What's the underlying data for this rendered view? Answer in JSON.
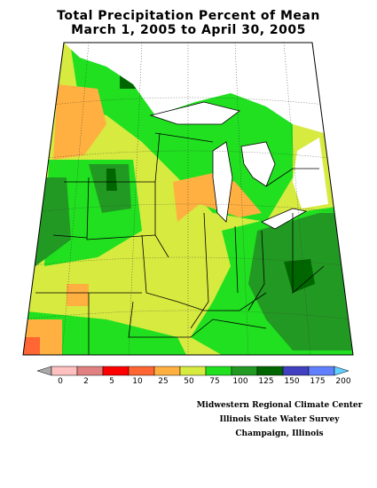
{
  "title": {
    "line1": "Total Precipitation Percent of Mean",
    "line2": "March 1, 2005 to April 30, 2005"
  },
  "legend": {
    "items": [
      {
        "label": "0",
        "color": "#ffc0c0"
      },
      {
        "label": "2",
        "color": "#e08080"
      },
      {
        "label": "5",
        "color": "#ff0000"
      },
      {
        "label": "10",
        "color": "#ff6633"
      },
      {
        "label": "25",
        "color": "#ffb040"
      },
      {
        "label": "50",
        "color": "#d6ea40"
      },
      {
        "label": "75",
        "color": "#20e020"
      },
      {
        "label": "100",
        "color": "#229922"
      },
      {
        "label": "125",
        "color": "#006600"
      },
      {
        "label": "150",
        "color": "#4040c0"
      },
      {
        "label": "175",
        "color": "#6080ff"
      },
      {
        "label": "200",
        "color": "#60d0ff"
      }
    ],
    "low_arrow_color": "#aaaaaa"
  },
  "credits": {
    "line1": "Midwestern Regional Climate Center",
    "line2": "Illinois State Water Survey",
    "line3": "Champaign, Illinois"
  },
  "colors": {
    "below_50": "#ffb040",
    "between_50_75": "#d6ea40",
    "between_75_100": "#20e020",
    "between_100_125": "#229922",
    "between_125_150": "#006600",
    "lake_water": "#ffffff"
  }
}
